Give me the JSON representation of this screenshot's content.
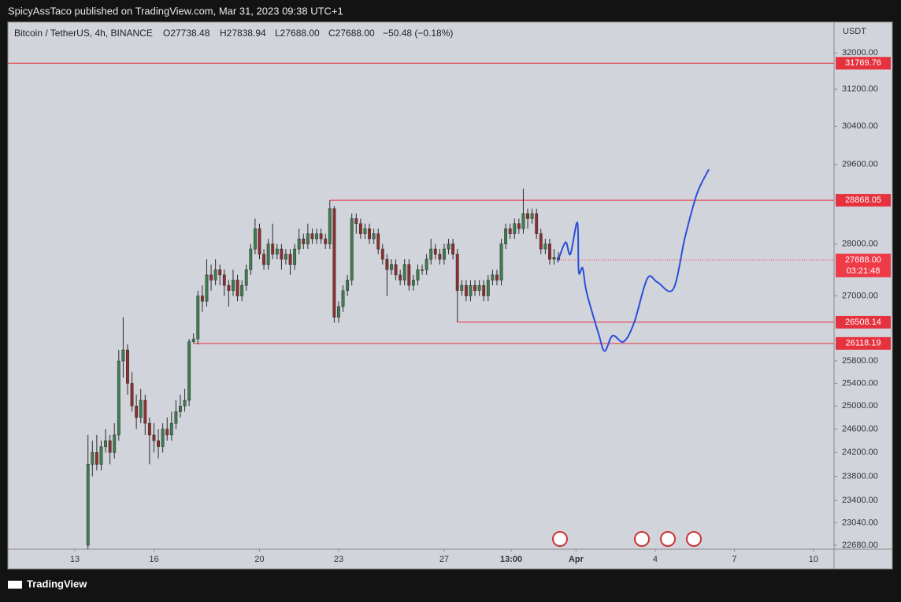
{
  "header": {
    "published": "SpicyAssTaco published on TradingView.com, Mar 31, 2023 09:38 UTC+1"
  },
  "footer": {
    "brand": "TradingView"
  },
  "chart_data": {
    "type": "candlestick",
    "legend": {
      "symbol": "Bitcoin / TetherUS, 4h, BINANCE",
      "open": "O27738.48",
      "high": "H27838.94",
      "low": "L27688.00",
      "close": "C27688.00",
      "change": "−50.48 (−0.18%)"
    },
    "y_unit": "USDT",
    "log": true,
    "up_color": "#3f7d4e",
    "down_color": "#8e2f2f",
    "wick_color": "#2b2b2b",
    "xlim": [
      -15.22,
      172.67
    ],
    "xticks": [
      {
        "value": 0,
        "label": "13"
      },
      {
        "value": 18,
        "label": "16"
      },
      {
        "value": 42,
        "label": "20"
      },
      {
        "value": 60,
        "label": "23"
      },
      {
        "value": 84,
        "label": "27"
      },
      {
        "value": 99.25,
        "label": "13:00"
      },
      {
        "value": 114,
        "label": "Apr"
      },
      {
        "value": 132,
        "label": "4"
      },
      {
        "value": 150,
        "label": "7"
      },
      {
        "value": 168,
        "label": "10"
      }
    ],
    "ylim": [
      22618,
      32698
    ],
    "yticks": [
      {
        "value": 32000,
        "label": "32000.00"
      },
      {
        "value": 31200,
        "label": "31200.00"
      },
      {
        "value": 30400,
        "label": "30400.00"
      },
      {
        "value": 29600,
        "label": "29600.00"
      },
      {
        "value": 28000,
        "label": "28000.00"
      },
      {
        "value": 27000,
        "label": "27000.00"
      },
      {
        "value": 25800,
        "label": "25800.00"
      },
      {
        "value": 25400,
        "label": "25400.00"
      },
      {
        "value": 25000,
        "label": "25000.00"
      },
      {
        "value": 24600,
        "label": "24600.00"
      },
      {
        "value": 24200,
        "label": "24200.00"
      },
      {
        "value": 23800,
        "label": "23800.00"
      },
      {
        "value": 23400,
        "label": "23400.00"
      },
      {
        "value": 23040,
        "label": "23040.00"
      },
      {
        "value": 22680,
        "label": "22680.00"
      }
    ],
    "x": [
      3,
      4,
      5,
      6,
      7,
      8,
      9,
      10,
      11,
      12,
      13,
      14,
      15,
      16,
      17,
      18,
      19,
      20,
      21,
      22,
      23,
      24,
      25,
      26,
      27,
      28,
      29,
      30,
      31,
      32,
      33,
      34,
      35,
      36,
      37,
      38,
      39,
      40,
      41,
      42,
      43,
      44,
      45,
      46,
      47,
      48,
      49,
      50,
      51,
      52,
      53,
      54,
      55,
      56,
      57,
      58,
      59,
      60,
      61,
      62,
      63,
      64,
      65,
      66,
      67,
      68,
      69,
      70,
      71,
      72,
      73,
      74,
      75,
      76,
      77,
      78,
      79,
      80,
      81,
      82,
      83,
      84,
      85,
      86,
      87,
      88,
      89,
      90,
      91,
      92,
      93,
      94,
      95,
      96,
      97,
      98,
      99,
      100,
      101,
      102,
      103,
      104,
      105,
      106,
      107,
      108,
      109,
      110
    ],
    "candles": [
      [
        22680,
        24500,
        22620,
        24000
      ],
      [
        24000,
        24400,
        23800,
        24200
      ],
      [
        24200,
        24500,
        23900,
        24000
      ],
      [
        24000,
        24400,
        23900,
        24300
      ],
      [
        24300,
        24600,
        24200,
        24400
      ],
      [
        24400,
        24500,
        24000,
        24200
      ],
      [
        24200,
        24700,
        24100,
        24500
      ],
      [
        24500,
        26000,
        24400,
        25800
      ],
      [
        25800,
        26600,
        25500,
        26000
      ],
      [
        26000,
        26100,
        25200,
        25400
      ],
      [
        25400,
        25600,
        24900,
        25000
      ],
      [
        25000,
        25200,
        24600,
        24800
      ],
      [
        24800,
        25300,
        24700,
        25100
      ],
      [
        25100,
        25200,
        24500,
        24700
      ],
      [
        24700,
        24800,
        24000,
        24500
      ],
      [
        24500,
        24700,
        24200,
        24400
      ],
      [
        24400,
        24600,
        24100,
        24300
      ],
      [
        24300,
        24700,
        24200,
        24600
      ],
      [
        24600,
        24800,
        24400,
        24500
      ],
      [
        24500,
        24900,
        24400,
        24700
      ],
      [
        24700,
        25100,
        24600,
        24900
      ],
      [
        24900,
        25200,
        24800,
        25000
      ],
      [
        25000,
        25300,
        24900,
        25100
      ],
      [
        25100,
        26200,
        25000,
        26150
      ],
      [
        26150,
        26300,
        26118.19,
        26200
      ],
      [
        26200,
        27100,
        26100,
        27000
      ],
      [
        27000,
        27200,
        26700,
        26900
      ],
      [
        26900,
        27700,
        26800,
        27400
      ],
      [
        27400,
        27600,
        27100,
        27300
      ],
      [
        27300,
        27700,
        27200,
        27500
      ],
      [
        27500,
        27600,
        27200,
        27400
      ],
      [
        27400,
        27500,
        27000,
        27200
      ],
      [
        27200,
        27300,
        26800,
        27100
      ],
      [
        27100,
        27500,
        27000,
        27300
      ],
      [
        27300,
        27400,
        26900,
        27000
      ],
      [
        27000,
        27300,
        26900,
        27200
      ],
      [
        27200,
        27600,
        27100,
        27500
      ],
      [
        27500,
        28000,
        27400,
        27900
      ],
      [
        27900,
        28500,
        27800,
        28300
      ],
      [
        28300,
        28400,
        27700,
        27800
      ],
      [
        27800,
        27900,
        27500,
        27600
      ],
      [
        27600,
        28100,
        27500,
        28000
      ],
      [
        28000,
        28400,
        27700,
        27800
      ],
      [
        27800,
        28000,
        27700,
        27900
      ],
      [
        27900,
        28000,
        27500,
        27700
      ],
      [
        27700,
        27900,
        27600,
        27800
      ],
      [
        27800,
        27900,
        27400,
        27600
      ],
      [
        27600,
        28000,
        27500,
        27900
      ],
      [
        27900,
        28300,
        27800,
        28100
      ],
      [
        28100,
        28200,
        27900,
        28000
      ],
      [
        28000,
        28400,
        27900,
        28200
      ],
      [
        28200,
        28300,
        28000,
        28100
      ],
      [
        28100,
        28300,
        28000,
        28200
      ],
      [
        28200,
        28300,
        28000,
        28100
      ],
      [
        28100,
        28200,
        27900,
        28000
      ],
      [
        28000,
        28868.05,
        27900,
        28700
      ],
      [
        28700,
        28750,
        26500,
        26600
      ],
      [
        26600,
        26900,
        26500,
        26800
      ],
      [
        26800,
        27200,
        26700,
        27100
      ],
      [
        27100,
        27400,
        27000,
        27300
      ],
      [
        27300,
        28600,
        27200,
        28500
      ],
      [
        28500,
        28600,
        28200,
        28400
      ],
      [
        28400,
        28500,
        28100,
        28200
      ],
      [
        28200,
        28400,
        28100,
        28300
      ],
      [
        28300,
        28400,
        28000,
        28100
      ],
      [
        28100,
        28300,
        28000,
        28200
      ],
      [
        28200,
        28300,
        27800,
        27900
      ],
      [
        27900,
        28000,
        27600,
        27700
      ],
      [
        27700,
        27800,
        27000,
        27500
      ],
      [
        27500,
        27700,
        27400,
        27600
      ],
      [
        27600,
        27700,
        27300,
        27400
      ],
      [
        27400,
        27500,
        27200,
        27300
      ],
      [
        27300,
        27700,
        27200,
        27600
      ],
      [
        27600,
        27700,
        27100,
        27200
      ],
      [
        27200,
        27400,
        27100,
        27300
      ],
      [
        27300,
        27600,
        27200,
        27500
      ],
      [
        27500,
        27600,
        27400,
        27500
      ],
      [
        27500,
        27800,
        27400,
        27700
      ],
      [
        27700,
        28100,
        27600,
        27900
      ],
      [
        27900,
        28000,
        27700,
        27800
      ],
      [
        27800,
        27900,
        27600,
        27700
      ],
      [
        27700,
        28000,
        27600,
        27900
      ],
      [
        27900,
        28100,
        27800,
        28000
      ],
      [
        28000,
        28100,
        27700,
        27800
      ],
      [
        27800,
        27900,
        26508.14,
        27100
      ],
      [
        27100,
        27300,
        27000,
        27200
      ],
      [
        27200,
        27300,
        26900,
        27000
      ],
      [
        27000,
        27300,
        26900,
        27200
      ],
      [
        27200,
        27300,
        27000,
        27100
      ],
      [
        27100,
        27300,
        27000,
        27200
      ],
      [
        27200,
        27300,
        26900,
        27000
      ],
      [
        27000,
        27400,
        26900,
        27300
      ],
      [
        27300,
        27500,
        27200,
        27400
      ],
      [
        27400,
        27500,
        27200,
        27300
      ],
      [
        27300,
        28100,
        27200,
        28000
      ],
      [
        28000,
        28400,
        27900,
        28300
      ],
      [
        28300,
        28400,
        28100,
        28200
      ],
      [
        28200,
        28500,
        28100,
        28400
      ],
      [
        28400,
        28500,
        28200,
        28300
      ],
      [
        28300,
        29100,
        28200,
        28600
      ],
      [
        28600,
        28700,
        28300,
        28500
      ],
      [
        28500,
        28700,
        28400,
        28600
      ],
      [
        28600,
        28700,
        28100,
        28200
      ],
      [
        28200,
        28300,
        27800,
        27900
      ],
      [
        27900,
        28100,
        27800,
        28000
      ],
      [
        28000,
        28100,
        27600,
        27700
      ],
      [
        27700,
        27900,
        27600,
        27738.48
      ],
      [
        27738.48,
        27838.94,
        27688,
        27688
      ]
    ],
    "levels": [
      {
        "value": 31769.76,
        "color": "#e5323e"
      },
      {
        "value": 28868.05,
        "start": 58,
        "color": "#e5323e"
      },
      {
        "value": 26508.14,
        "start": 87,
        "color": "#e5323e"
      },
      {
        "value": 26118.19,
        "start": 27,
        "color": "#e5323e"
      }
    ],
    "last_price": {
      "value": 27688,
      "label": "27688.00",
      "countdown": "03:21:48",
      "color": "#ef3a48"
    },
    "projection": {
      "color": "#2a4fd6",
      "x": [
        109.8,
        111.6,
        112.7,
        114.3,
        114.6,
        115.5,
        116.4,
        119.1,
        120.5,
        122.3,
        124.8,
        127.2,
        130.2,
        132.5,
        136.1,
        138.8,
        141.5,
        144.2
      ],
      "values": [
        27647,
        28031,
        27800,
        28420,
        27460,
        27530,
        27070,
        26300,
        25980,
        26260,
        26150,
        26500,
        27330,
        27260,
        27130,
        28140,
        29000,
        29500
      ]
    }
  }
}
